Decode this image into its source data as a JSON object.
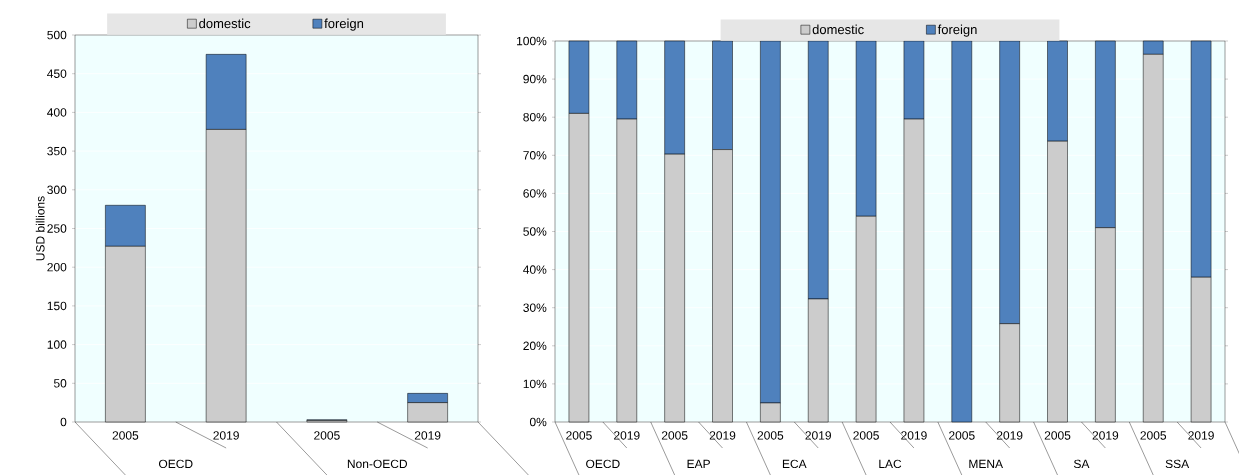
{
  "chart_data": [
    {
      "type": "bar",
      "stacked": true,
      "ylabel": "USD billions",
      "categories": [
        "2005",
        "2019",
        "2005",
        "2019"
      ],
      "annotations": [
        "OECD",
        "Non-OECD"
      ],
      "series": [
        {
          "name": "domestic",
          "color": "#cccccc",
          "values": [
            227,
            378,
            2,
            25
          ]
        },
        {
          "name": "foreign",
          "color": "#4f81bd",
          "values": [
            53,
            97,
            1,
            12
          ]
        }
      ],
      "ylim": [
        0,
        500
      ],
      "yticks": [
        0,
        50,
        100,
        150,
        200,
        250,
        300,
        350,
        400,
        450,
        500
      ],
      "grid": "y",
      "legend": "top"
    },
    {
      "type": "bar",
      "stacked": true,
      "categories": [
        "2005",
        "2019",
        "2005",
        "2019",
        "2005",
        "2019",
        "2005",
        "2019",
        "2005",
        "2019",
        "2005",
        "2019",
        "2005",
        "2019"
      ],
      "annotations": [
        "OECD",
        "EAP",
        "ECA",
        "LAC",
        "MENA",
        "SA",
        "SSA"
      ],
      "series": [
        {
          "name": "domestic",
          "color": "#cccccc",
          "values": [
            81,
            79.5,
            70.3,
            71.5,
            5,
            32.3,
            54,
            79.5,
            0,
            25.8,
            73.7,
            51,
            96.5,
            38
          ]
        },
        {
          "name": "foreign",
          "color": "#4f81bd",
          "values": [
            19,
            20.5,
            29.7,
            28.5,
            95,
            67.7,
            46,
            20.5,
            100,
            74.2,
            26.3,
            49,
            3.5,
            62
          ]
        }
      ],
      "ylim": [
        0,
        100
      ],
      "yticks": [
        {
          "value": 0,
          "label": "0%"
        },
        {
          "value": 10,
          "label": "10%"
        },
        {
          "value": 20,
          "label": "20%"
        },
        {
          "value": 30,
          "label": "30%"
        },
        {
          "value": 40,
          "label": "40%"
        },
        {
          "value": 50,
          "label": "50%"
        },
        {
          "value": 60,
          "label": "60%"
        },
        {
          "value": 70,
          "label": "70%"
        },
        {
          "value": 80,
          "label": "80%"
        },
        {
          "value": 90,
          "label": "90%"
        },
        {
          "value": 100,
          "label": "100%"
        }
      ],
      "grid": "y",
      "legend": "top"
    }
  ]
}
